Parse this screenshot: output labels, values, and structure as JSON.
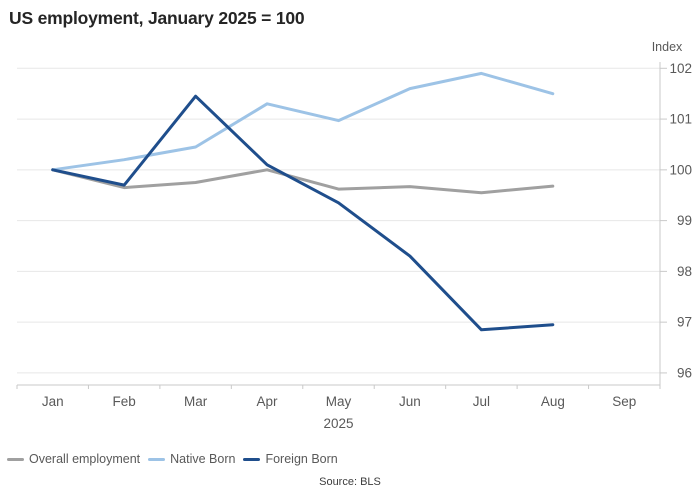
{
  "page": {
    "title": "US employment, January 2025 = 100",
    "source": "Source: BLS"
  },
  "chart_data": {
    "type": "line",
    "title": "US employment, January 2025 = 100",
    "y_axis_title": "Index",
    "y_ticks": [
      96,
      97,
      98,
      99,
      100,
      101,
      102
    ],
    "ylim": [
      95.7,
      102
    ],
    "grid": "horizontal",
    "legend_position": "bottom-left",
    "x_categories": [
      "Jan",
      "Feb",
      "Mar",
      "Apr",
      "May",
      "Jun",
      "Jul",
      "Aug",
      "Sep"
    ],
    "x_year_label": "2025",
    "series": [
      {
        "name": "Overall employment",
        "color": "#A0A0A0",
        "values": [
          100,
          99.65,
          99.75,
          100.0,
          99.62,
          99.67,
          99.55,
          99.68
        ]
      },
      {
        "name": "Native Born",
        "color": "#9DC3E6",
        "values": [
          100,
          100.2,
          100.45,
          101.3,
          100.97,
          101.6,
          101.9,
          101.5
        ]
      },
      {
        "name": "Foreign Born",
        "color": "#1F4E8C",
        "values": [
          100,
          99.7,
          101.45,
          100.1,
          99.35,
          98.3,
          96.85,
          96.95
        ]
      }
    ],
    "axis_colors": {
      "gridline": "#E7E7E7",
      "axis_line": "#C9C9C9",
      "tick_label": "#595959"
    }
  }
}
